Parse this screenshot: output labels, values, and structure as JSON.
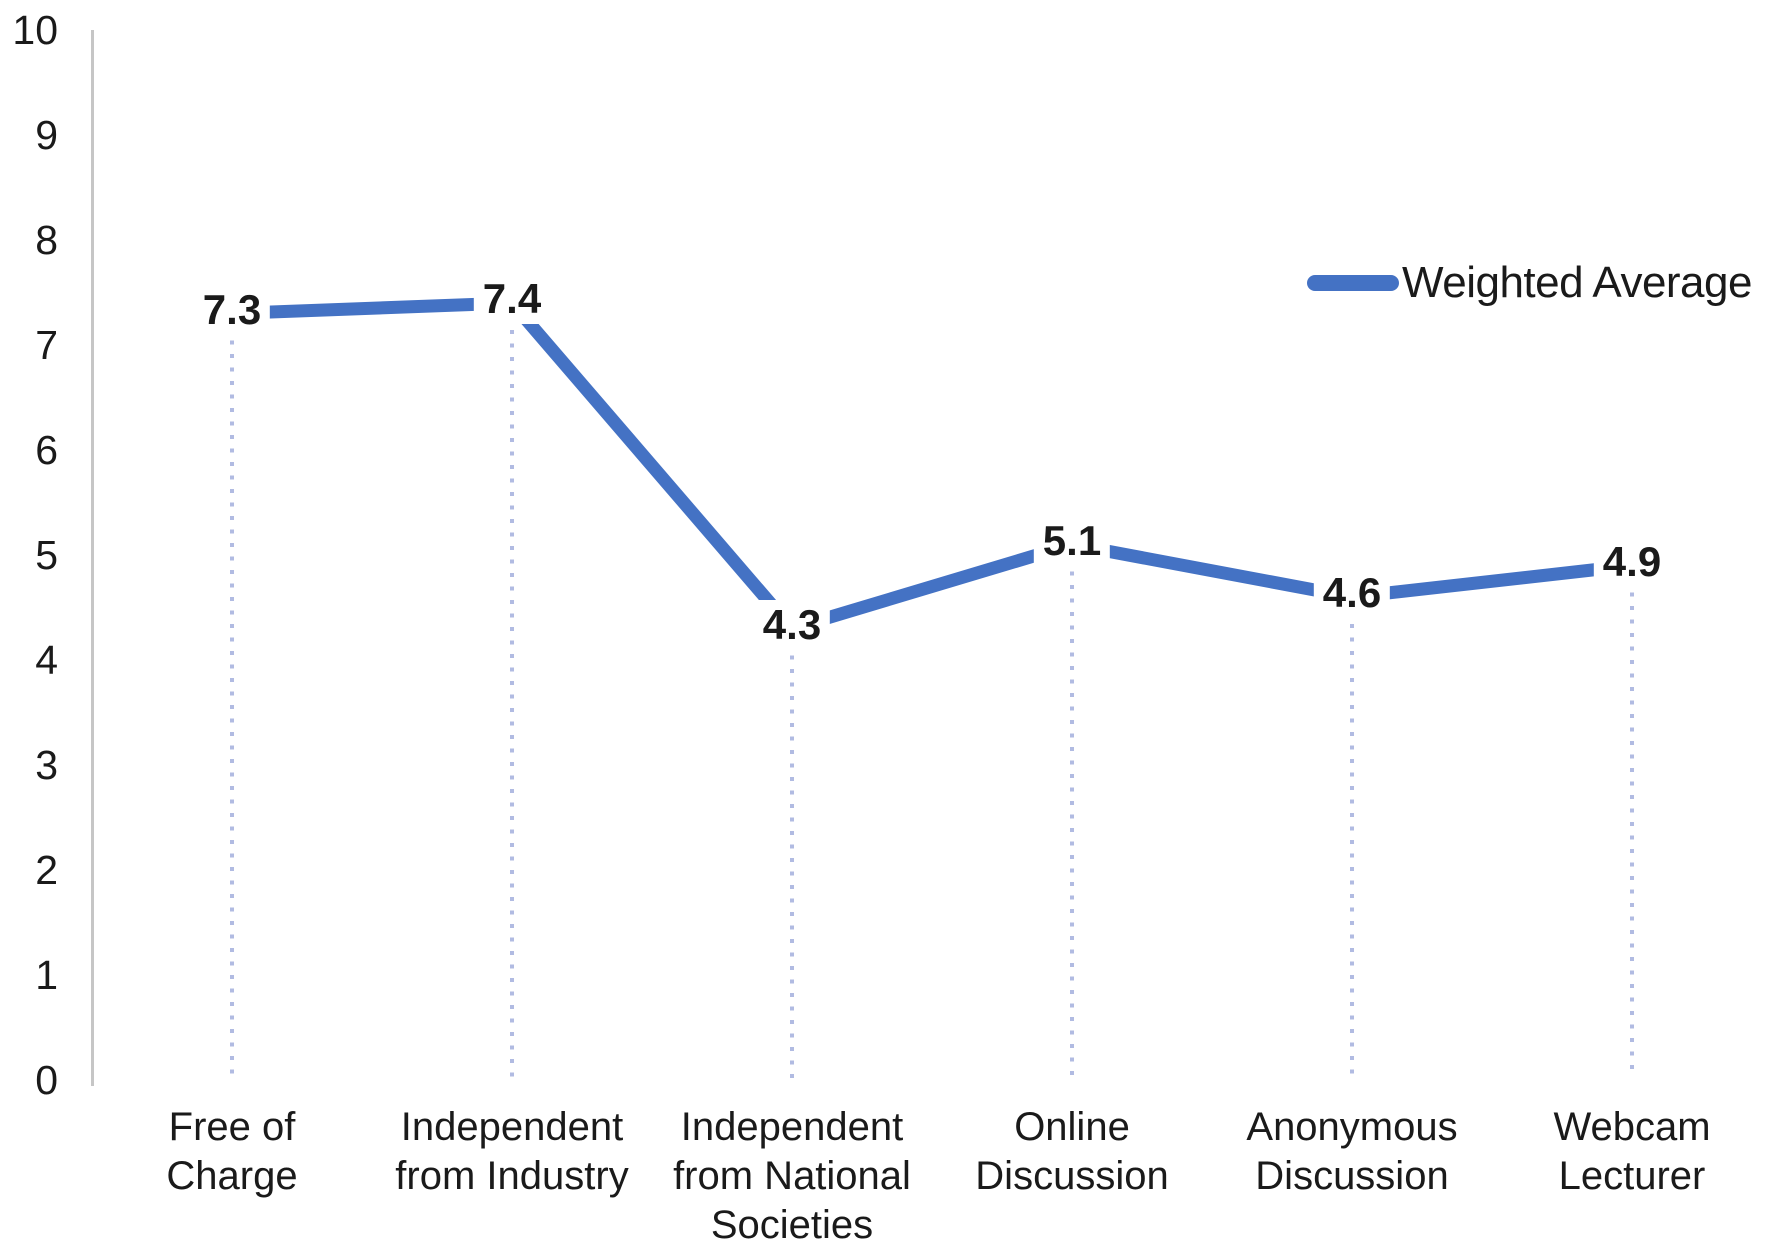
{
  "chart_data": {
    "type": "line",
    "title": "",
    "xlabel": "",
    "ylabel": "",
    "categories": [
      "Free of Charge",
      "Independent from Industry",
      "Independent from National Societies",
      "Online Discussion",
      "Anonymous Discussion",
      "Webcam Lecturer"
    ],
    "categories_lines": [
      [
        "Free of",
        "Charge"
      ],
      [
        "Independent",
        "from Industry"
      ],
      [
        "Independent",
        "from National",
        "Societies"
      ],
      [
        "Online",
        "Discussion"
      ],
      [
        "Anonymous",
        "Discussion"
      ],
      [
        "Webcam",
        "Lecturer"
      ]
    ],
    "series": [
      {
        "name": "Weighted Average",
        "values": [
          7.3,
          7.4,
          4.3,
          5.1,
          4.6,
          4.9
        ],
        "labels": [
          "7.3",
          "7.4",
          "4.3",
          "5.1",
          "4.6",
          "4.9"
        ]
      }
    ],
    "ylim": [
      0,
      10
    ],
    "yticks": [
      "0",
      "1",
      "2",
      "3",
      "4",
      "5",
      "6",
      "7",
      "8",
      "9",
      "10"
    ],
    "grid": false,
    "legend_position": "top-right",
    "drop_lines": true,
    "colors": {
      "line": "#4472c4",
      "drop_line": "#b1bbe2",
      "axis": "#c6c6c6",
      "text": "#1a1a1a"
    }
  }
}
